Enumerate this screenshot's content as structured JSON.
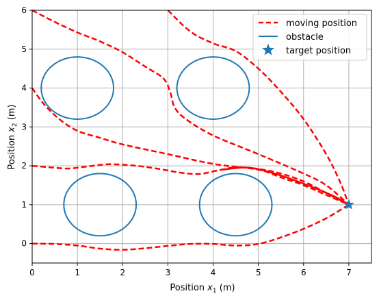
{
  "chart_data": {
    "type": "line",
    "xlabel": {
      "prefix": "Position ",
      "var": "x",
      "sub": "1",
      "unit": "(m)"
    },
    "ylabel": {
      "prefix": "Position ",
      "var": "x",
      "sub": "2",
      "unit": "(m)"
    },
    "xlim": [
      0,
      7.5
    ],
    "ylim": [
      -0.5,
      6
    ],
    "xticks": [
      0,
      1,
      2,
      3,
      4,
      5,
      6,
      7
    ],
    "yticks": [
      0,
      1,
      2,
      3,
      4,
      5,
      6
    ],
    "grid": true,
    "legend_position": "top-right",
    "legend": [
      {
        "label": "moving position",
        "kind": "dashed-line"
      },
      {
        "label": "obstacle",
        "kind": "line"
      },
      {
        "label": "target position",
        "kind": "star"
      }
    ],
    "colors": {
      "path": "#ff0000",
      "obstacle": "#1f77b4",
      "target": "#1f77b4",
      "grid": "#b0b0b0"
    },
    "target": {
      "x": 7,
      "y": 1
    },
    "obstacles": [
      {
        "cx": 1.0,
        "cy": 4.0,
        "rx": 0.8,
        "ry": 0.8
      },
      {
        "cx": 4.0,
        "cy": 4.0,
        "rx": 0.8,
        "ry": 0.8
      },
      {
        "cx": 1.5,
        "cy": 1.0,
        "rx": 0.8,
        "ry": 0.8
      },
      {
        "cx": 4.5,
        "cy": 1.0,
        "rx": 0.8,
        "ry": 0.8
      }
    ],
    "series": [
      {
        "style": "dashed",
        "points": [
          [
            3.0,
            6.0
          ],
          [
            3.5,
            5.45
          ],
          [
            4.0,
            5.15
          ],
          [
            4.5,
            4.95
          ],
          [
            5.0,
            4.5
          ],
          [
            5.5,
            3.9
          ],
          [
            6.0,
            3.2
          ],
          [
            6.5,
            2.3
          ],
          [
            6.8,
            1.6
          ],
          [
            7.0,
            1.0
          ]
        ]
      },
      {
        "style": "dashed",
        "points": [
          [
            0.0,
            6.0
          ],
          [
            0.5,
            5.7
          ],
          [
            1.0,
            5.43
          ],
          [
            1.5,
            5.2
          ],
          [
            2.0,
            4.92
          ],
          [
            2.5,
            4.55
          ],
          [
            2.9,
            4.25
          ],
          [
            3.05,
            3.9
          ],
          [
            3.15,
            3.5
          ],
          [
            3.4,
            3.2
          ],
          [
            4.0,
            2.78
          ],
          [
            5.0,
            2.3
          ],
          [
            6.0,
            1.8
          ],
          [
            6.5,
            1.5
          ],
          [
            7.0,
            1.0
          ]
        ]
      },
      {
        "style": "dashed",
        "points": [
          [
            0.0,
            4.0
          ],
          [
            0.25,
            3.6
          ],
          [
            0.6,
            3.2
          ],
          [
            1.0,
            2.9
          ],
          [
            1.5,
            2.72
          ],
          [
            2.0,
            2.55
          ],
          [
            3.0,
            2.3
          ],
          [
            4.0,
            2.05
          ],
          [
            5.0,
            1.9
          ],
          [
            5.5,
            1.7
          ],
          [
            6.0,
            1.5
          ],
          [
            6.5,
            1.25
          ],
          [
            7.0,
            1.0
          ]
        ]
      },
      {
        "style": "dashed",
        "points": [
          [
            0.0,
            2.0
          ],
          [
            0.4,
            1.96
          ],
          [
            0.8,
            1.93
          ],
          [
            1.2,
            1.98
          ],
          [
            1.7,
            2.04
          ],
          [
            2.3,
            2.0
          ],
          [
            2.8,
            1.92
          ],
          [
            3.3,
            1.82
          ],
          [
            3.7,
            1.79
          ],
          [
            4.1,
            1.88
          ],
          [
            4.5,
            1.96
          ],
          [
            5.0,
            1.92
          ],
          [
            5.5,
            1.8
          ],
          [
            6.0,
            1.6
          ],
          [
            6.5,
            1.3
          ],
          [
            7.0,
            1.0
          ]
        ]
      },
      {
        "style": "solid",
        "points": [
          [
            4.2,
            1.9
          ],
          [
            4.8,
            1.95
          ],
          [
            5.5,
            1.75
          ],
          [
            6.2,
            1.45
          ],
          [
            6.7,
            1.2
          ],
          [
            7.0,
            1.0
          ]
        ]
      },
      {
        "style": "dashed",
        "points": [
          [
            0.0,
            0.0
          ],
          [
            0.5,
            -0.01
          ],
          [
            1.0,
            -0.05
          ],
          [
            1.5,
            -0.13
          ],
          [
            2.0,
            -0.16
          ],
          [
            2.5,
            -0.12
          ],
          [
            3.0,
            -0.06
          ],
          [
            3.5,
            -0.01
          ],
          [
            4.0,
            -0.01
          ],
          [
            4.5,
            -0.05
          ],
          [
            5.0,
            -0.01
          ],
          [
            5.5,
            0.16
          ],
          [
            6.0,
            0.38
          ],
          [
            6.5,
            0.65
          ],
          [
            7.0,
            1.0
          ]
        ]
      }
    ]
  }
}
